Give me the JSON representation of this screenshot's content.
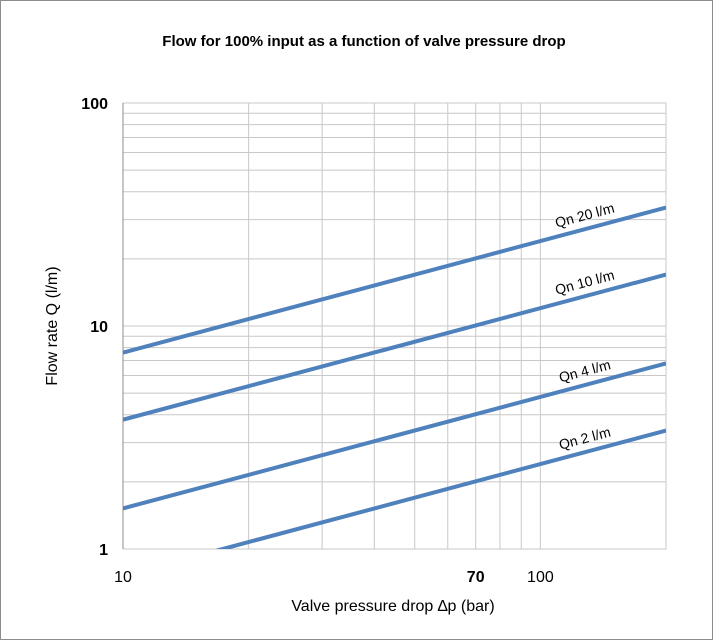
{
  "chart_data": {
    "type": "line",
    "title": "Flow for 100% input as a function of valve pressure drop",
    "xlabel": "Valve pressure drop ∆p (bar)",
    "ylabel": "Flow rate Q (l/m)",
    "x_scale": "log",
    "y_scale": "log",
    "xlim": [
      10,
      200
    ],
    "ylim": [
      1,
      100
    ],
    "x_ticks": [
      {
        "value": 10,
        "label": "10",
        "bold": false
      },
      {
        "value": 70,
        "label": "70",
        "bold": true
      },
      {
        "value": 100,
        "label": "100",
        "bold": false
      }
    ],
    "y_ticks": [
      {
        "value": 1,
        "label": "1"
      },
      {
        "value": 10,
        "label": "10"
      },
      {
        "value": 100,
        "label": "100"
      }
    ],
    "grid": true,
    "series": [
      {
        "name": "Qn 20 l/m",
        "x": [
          10,
          200
        ],
        "y": [
          7.6,
          34
        ]
      },
      {
        "name": "Qn 10 l/m",
        "x": [
          10,
          200
        ],
        "y": [
          3.8,
          17
        ]
      },
      {
        "name": "Qn 4 l/m",
        "x": [
          10,
          200
        ],
        "y": [
          1.52,
          6.8
        ]
      },
      {
        "name": "Qn 2 l/m",
        "x": [
          15,
          200
        ],
        "y": [
          0.93,
          3.4
        ]
      }
    ],
    "line_color": "#4f81bd",
    "grid_color": "#c8c8c8"
  }
}
